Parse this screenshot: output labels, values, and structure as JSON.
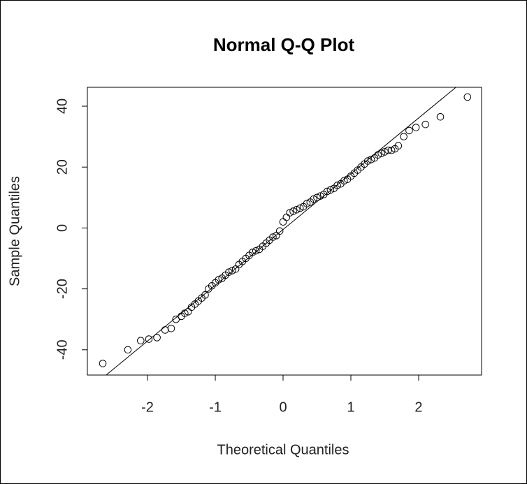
{
  "chart_data": {
    "type": "scatter",
    "title": "Normal Q-Q Plot",
    "x_label": "Theoretical Quantiles",
    "y_label": "Sample Quantiles",
    "x": [
      -2.66,
      -2.29,
      -2.1,
      -1.98,
      -1.86,
      -1.74,
      -1.65,
      -1.58,
      -1.5,
      -1.45,
      -1.4,
      -1.35,
      -1.3,
      -1.25,
      -1.2,
      -1.15,
      -1.1,
      -1.05,
      -1.0,
      -0.95,
      -0.9,
      -0.85,
      -0.8,
      -0.75,
      -0.7,
      -0.65,
      -0.6,
      -0.55,
      -0.5,
      -0.45,
      -0.4,
      -0.35,
      -0.3,
      -0.25,
      -0.2,
      -0.15,
      -0.1,
      -0.05,
      0.0,
      0.05,
      0.1,
      0.15,
      0.2,
      0.25,
      0.3,
      0.35,
      0.4,
      0.45,
      0.5,
      0.55,
      0.6,
      0.65,
      0.7,
      0.75,
      0.8,
      0.85,
      0.9,
      0.95,
      1.0,
      1.05,
      1.1,
      1.15,
      1.2,
      1.25,
      1.3,
      1.35,
      1.4,
      1.45,
      1.5,
      1.55,
      1.6,
      1.65,
      1.7,
      1.78,
      1.86,
      1.96,
      2.1,
      2.32,
      2.72
    ],
    "y": [
      -44.5,
      -40,
      -37,
      -36.5,
      -36,
      -33.5,
      -33,
      -30,
      -29,
      -28,
      -27.5,
      -26,
      -25,
      -24,
      -23,
      -22,
      -20,
      -19,
      -18,
      -17,
      -16.5,
      -15.5,
      -14.5,
      -14,
      -13.5,
      -12,
      -11,
      -10,
      -9,
      -8,
      -7.5,
      -7,
      -6,
      -5,
      -4,
      -3,
      -2.5,
      -1,
      2,
      3.5,
      5,
      5.5,
      6,
      6.5,
      7,
      8,
      8.5,
      9.5,
      10,
      10.5,
      11,
      12,
      12.5,
      13,
      14,
      14.5,
      15.5,
      16,
      17,
      18,
      19,
      20,
      21,
      22,
      22.5,
      23,
      24,
      24.5,
      25,
      25.5,
      25.5,
      26,
      27,
      30,
      32,
      33,
      34,
      36.5,
      43
    ],
    "color": "#000000",
    "reference_line": {
      "x": [
        -2.61,
        2.55
      ],
      "y": [
        -48.3,
        46.2
      ]
    },
    "xlim": [
      -2.887,
      2.928
    ],
    "ylim": [
      -48.3,
      46.2
    ],
    "xticks": [
      -2,
      -1,
      0,
      1,
      2
    ],
    "yticks": [
      -40,
      -20,
      0,
      20,
      40
    ]
  }
}
